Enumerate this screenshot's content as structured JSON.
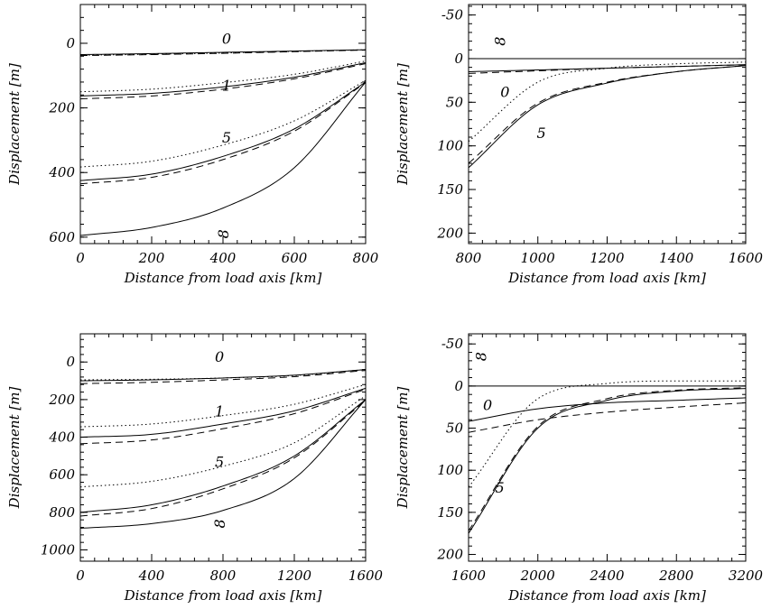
{
  "chart_data": [
    {
      "type": "line",
      "xlabel": "Distance from load axis [km]",
      "ylabel": "Displacement [m]",
      "xlim": [
        0,
        800
      ],
      "ylim": [
        620,
        -120
      ],
      "y_inverted": true,
      "xticks": [
        0,
        200,
        400,
        600,
        800
      ],
      "yticks": [
        600,
        400,
        200,
        0
      ],
      "series": [
        {
          "label": "0",
          "style": "solid",
          "x": [
            0,
            200,
            400,
            600,
            800
          ],
          "y": [
            35,
            32,
            28,
            24,
            20
          ]
        },
        {
          "label": "0",
          "style": "dashed",
          "x": [
            0,
            200,
            400,
            600,
            800
          ],
          "y": [
            38,
            35,
            31,
            26,
            21
          ]
        },
        {
          "label": "0",
          "style": "dotted",
          "x": [
            0,
            200,
            400,
            600,
            800
          ],
          "y": [
            37,
            34,
            30,
            25,
            20
          ]
        },
        {
          "label": "1",
          "style": "solid",
          "x": [
            0,
            200,
            400,
            600,
            800
          ],
          "y": [
            163,
            155,
            135,
            105,
            60
          ]
        },
        {
          "label": "1",
          "style": "dashed",
          "x": [
            0,
            200,
            400,
            600,
            800
          ],
          "y": [
            172,
            163,
            142,
            110,
            63
          ]
        },
        {
          "label": "1",
          "style": "dotted",
          "x": [
            0,
            200,
            400,
            600,
            800
          ],
          "y": [
            150,
            142,
            122,
            96,
            55
          ]
        },
        {
          "label": "5",
          "style": "solid",
          "x": [
            0,
            200,
            400,
            600,
            800
          ],
          "y": [
            425,
            405,
            350,
            265,
            120
          ]
        },
        {
          "label": "5",
          "style": "dashed",
          "x": [
            0,
            200,
            400,
            600,
            800
          ],
          "y": [
            435,
            415,
            360,
            272,
            122
          ]
        },
        {
          "label": "5",
          "style": "dotted",
          "x": [
            0,
            200,
            400,
            600,
            800
          ],
          "y": [
            383,
            365,
            315,
            240,
            115
          ]
        },
        {
          "label": "8",
          "style": "solid",
          "x": [
            0,
            200,
            400,
            600,
            800
          ],
          "y": [
            595,
            570,
            510,
            385,
            120
          ]
        }
      ],
      "curve_labels": [
        {
          "text": "0",
          "x": 410,
          "y": -15
        },
        {
          "text": "1",
          "x": 410,
          "y": 130
        },
        {
          "text": "5",
          "x": 410,
          "y": 290
        },
        {
          "text": "8",
          "x": 400,
          "y": 590
        }
      ]
    },
    {
      "type": "line",
      "xlabel": "Distance from load axis [km]",
      "ylabel": "Displacement [m]",
      "xlim": [
        800,
        1600
      ],
      "ylim": [
        212,
        -62
      ],
      "y_inverted": true,
      "xticks": [
        800,
        1000,
        1200,
        1400,
        1600
      ],
      "yticks": [
        200,
        150,
        100,
        50,
        0,
        -50
      ],
      "series": [
        {
          "label": "8",
          "style": "solid",
          "x": [
            800,
            1000,
            1200,
            1400,
            1600
          ],
          "y": [
            0,
            0,
            0,
            0,
            0
          ]
        },
        {
          "label": "0",
          "style": "solid",
          "x": [
            800,
            1000,
            1200,
            1400,
            1600
          ],
          "y": [
            15,
            13,
            11,
            9,
            7
          ]
        },
        {
          "label": "0",
          "style": "dashed",
          "x": [
            800,
            1000,
            1200,
            1400,
            1600
          ],
          "y": [
            17,
            14,
            11,
            9,
            7
          ]
        },
        {
          "label": "0",
          "style": "dotted",
          "x": [
            800,
            1000,
            1200,
            1400,
            1600
          ],
          "y": [
            95,
            27,
            11,
            6,
            4
          ]
        },
        {
          "label": "5",
          "style": "solid",
          "x": [
            800,
            1000,
            1200,
            1400,
            1600
          ],
          "y": [
            125,
            53,
            28,
            15,
            8
          ]
        },
        {
          "label": "5",
          "style": "dashed",
          "x": [
            800,
            1000,
            1200,
            1400,
            1600
          ],
          "y": [
            120,
            51,
            27,
            15,
            8
          ]
        }
      ],
      "curve_labels": [
        {
          "text": "8",
          "x": 890,
          "y": -20
        },
        {
          "text": "0",
          "x": 905,
          "y": 38
        },
        {
          "text": "5",
          "x": 1010,
          "y": 85
        }
      ]
    },
    {
      "type": "line",
      "xlabel": "Distance from load axis [km]",
      "ylabel": "Displacement [m]",
      "xlim": [
        0,
        1600
      ],
      "ylim": [
        1060,
        -150
      ],
      "y_inverted": true,
      "xticks": [
        0,
        400,
        800,
        1200,
        1600
      ],
      "yticks": [
        1000,
        800,
        600,
        400,
        200,
        0
      ],
      "series": [
        {
          "label": "0",
          "style": "solid",
          "x": [
            0,
            400,
            800,
            1200,
            1600
          ],
          "y": [
            100,
            95,
            85,
            70,
            40
          ]
        },
        {
          "label": "0",
          "style": "dashed",
          "x": [
            0,
            400,
            800,
            1200,
            1600
          ],
          "y": [
            115,
            108,
            95,
            78,
            45
          ]
        },
        {
          "label": "0",
          "style": "dotted",
          "x": [
            0,
            400,
            800,
            1200,
            1600
          ],
          "y": [
            95,
            92,
            85,
            72,
            40
          ]
        },
        {
          "label": "1",
          "style": "solid",
          "x": [
            0,
            400,
            800,
            1200,
            1600
          ],
          "y": [
            400,
            385,
            330,
            260,
            140
          ]
        },
        {
          "label": "1",
          "style": "dashed",
          "x": [
            0,
            400,
            800,
            1200,
            1600
          ],
          "y": [
            435,
            415,
            355,
            275,
            145
          ]
        },
        {
          "label": "1",
          "style": "dotted",
          "x": [
            0,
            400,
            800,
            1200,
            1600
          ],
          "y": [
            345,
            330,
            285,
            225,
            120
          ]
        },
        {
          "label": "5",
          "style": "solid",
          "x": [
            0,
            400,
            800,
            1200,
            1600
          ],
          "y": [
            800,
            760,
            660,
            500,
            200
          ]
        },
        {
          "label": "5",
          "style": "dashed",
          "x": [
            0,
            400,
            800,
            1200,
            1600
          ],
          "y": [
            820,
            780,
            675,
            510,
            205
          ]
        },
        {
          "label": "5",
          "style": "dotted",
          "x": [
            0,
            400,
            800,
            1200,
            1600
          ],
          "y": [
            665,
            635,
            555,
            430,
            180
          ]
        },
        {
          "label": "8",
          "style": "solid",
          "x": [
            0,
            400,
            800,
            1200,
            1600
          ],
          "y": [
            885,
            860,
            790,
            620,
            200
          ]
        }
      ],
      "curve_labels": [
        {
          "text": "0",
          "x": 780,
          "y": -30
        },
        {
          "text": "1",
          "x": 780,
          "y": 260
        },
        {
          "text": "5",
          "x": 780,
          "y": 530
        },
        {
          "text": "8",
          "x": 780,
          "y": 860
        }
      ]
    },
    {
      "type": "line",
      "xlabel": "Distance from load axis [km]",
      "ylabel": "Displacement [m]",
      "xlim": [
        1600,
        3200
      ],
      "ylim": [
        208,
        -62
      ],
      "y_inverted": true,
      "xticks": [
        1600,
        2000,
        2400,
        2800,
        3200
      ],
      "yticks": [
        200,
        150,
        100,
        50,
        0,
        -50
      ],
      "series": [
        {
          "label": "8",
          "style": "solid",
          "x": [
            1600,
            2000,
            2400,
            2800,
            3200
          ],
          "y": [
            0,
            0,
            0,
            0,
            0
          ]
        },
        {
          "label": "0",
          "style": "solid",
          "x": [
            1600,
            2000,
            2400,
            2800,
            3200
          ],
          "y": [
            42,
            27,
            20,
            17,
            14
          ]
        },
        {
          "label": "0",
          "style": "dashed",
          "x": [
            1600,
            2000,
            2400,
            2800,
            3200
          ],
          "y": [
            55,
            40,
            31,
            25,
            20
          ]
        },
        {
          "label": "0",
          "style": "dotted",
          "x": [
            1600,
            2000,
            2400,
            2800,
            3200
          ],
          "y": [
            120,
            15,
            -3,
            -6,
            -6
          ]
        },
        {
          "label": "5",
          "style": "solid",
          "x": [
            1600,
            2000,
            2400,
            2800,
            3200
          ],
          "y": [
            175,
            50,
            17,
            6,
            3
          ]
        },
        {
          "label": "5",
          "style": "dashed",
          "x": [
            1600,
            2000,
            2400,
            2800,
            3200
          ],
          "y": [
            172,
            48,
            15,
            5,
            2
          ]
        }
      ],
      "curve_labels": [
        {
          "text": "8",
          "x": 1670,
          "y": -35
        },
        {
          "text": "0",
          "x": 1710,
          "y": 22
        },
        {
          "text": "5",
          "x": 1780,
          "y": 120
        }
      ]
    }
  ]
}
